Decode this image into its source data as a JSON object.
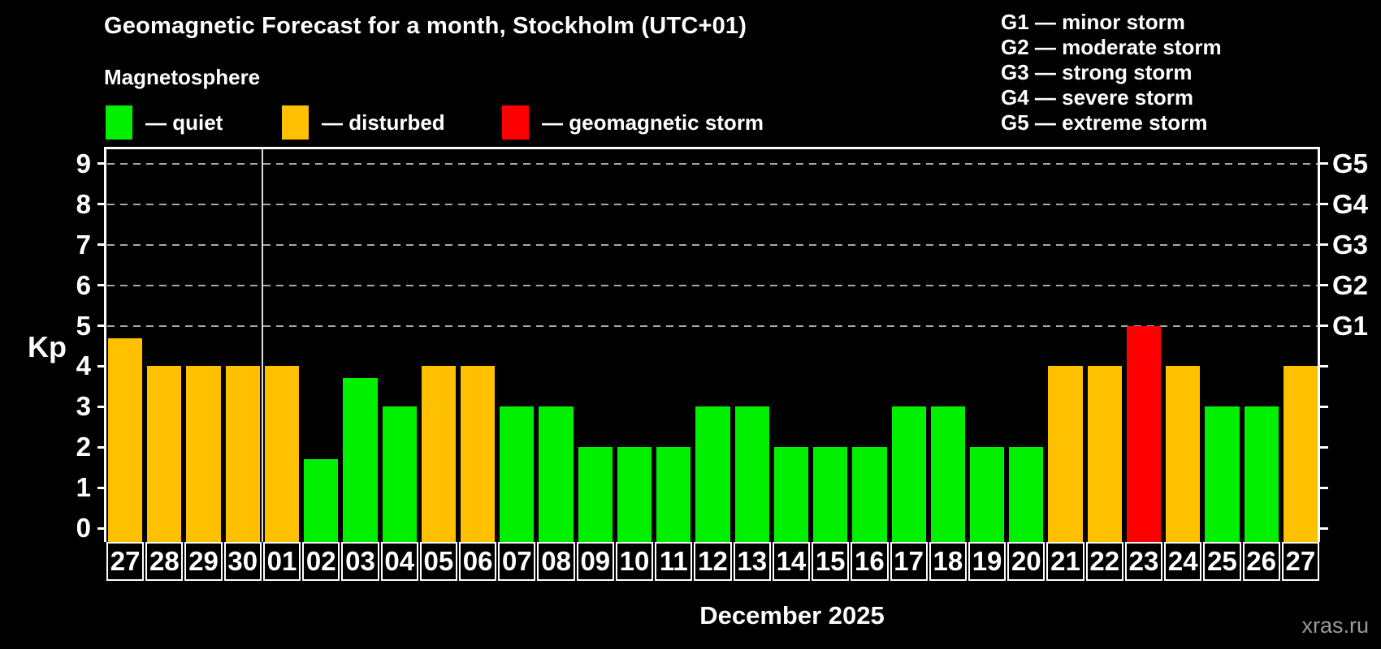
{
  "header": {
    "title": "Geomagnetic Forecast for a month, Stockholm (UTC+01)",
    "subtitle": "Magnetosphere"
  },
  "legend": {
    "items": [
      {
        "key": "quiet",
        "label": "— quiet",
        "color": "#00f000"
      },
      {
        "key": "disturbed",
        "label": "— disturbed",
        "color": "#ffc000"
      },
      {
        "key": "storm",
        "label": "— geomagnetic storm",
        "color": "#ff0000"
      }
    ]
  },
  "g_legend": {
    "lines": [
      "G1 — minor storm",
      "G2 — moderate storm",
      "G3 — strong storm",
      "G4 — severe storm",
      "G5 — extreme storm"
    ]
  },
  "footer": {
    "x_label": "December 2025",
    "watermark": "xras.ru"
  },
  "chart_data": {
    "type": "bar",
    "title": "Geomagnetic Forecast for a month, Stockholm (UTC+01)",
    "ylabel": "Kp",
    "xlabel": "December 2025",
    "ylim": [
      0,
      9.4
    ],
    "grid": "dashed horizontal lines at Kp 5-9 only",
    "legend_position": "top-left",
    "y_ticks": [
      0,
      1,
      2,
      3,
      4,
      5,
      6,
      7,
      8,
      9
    ],
    "gridlines_at": [
      5,
      6,
      7,
      8,
      9
    ],
    "right_axis_labels": [
      {
        "kp": 5,
        "label": "G1"
      },
      {
        "kp": 6,
        "label": "G2"
      },
      {
        "kp": 7,
        "label": "G3"
      },
      {
        "kp": 8,
        "label": "G4"
      },
      {
        "kp": 9,
        "label": "G5"
      }
    ],
    "month_separator_after_index": 3,
    "categories": [
      "27",
      "28",
      "29",
      "30",
      "01",
      "02",
      "03",
      "04",
      "05",
      "06",
      "07",
      "08",
      "09",
      "10",
      "11",
      "12",
      "13",
      "14",
      "15",
      "16",
      "17",
      "18",
      "19",
      "20",
      "21",
      "22",
      "23",
      "24",
      "25",
      "26",
      "27"
    ],
    "values": [
      4.7,
      4,
      4,
      4,
      4,
      1.7,
      3.7,
      3,
      4,
      4,
      3,
      3,
      2,
      2,
      2,
      3,
      3,
      2,
      2,
      2,
      3,
      3,
      2,
      2,
      4,
      4,
      5,
      4,
      3,
      3,
      4
    ],
    "statuses": [
      "disturbed",
      "disturbed",
      "disturbed",
      "disturbed",
      "disturbed",
      "quiet",
      "quiet",
      "quiet",
      "disturbed",
      "disturbed",
      "quiet",
      "quiet",
      "quiet",
      "quiet",
      "quiet",
      "quiet",
      "quiet",
      "quiet",
      "quiet",
      "quiet",
      "quiet",
      "quiet",
      "quiet",
      "quiet",
      "disturbed",
      "disturbed",
      "storm",
      "disturbed",
      "quiet",
      "quiet",
      "disturbed"
    ],
    "status_colors": {
      "quiet": "#00f000",
      "disturbed": "#ffc000",
      "storm": "#ff0000"
    }
  }
}
